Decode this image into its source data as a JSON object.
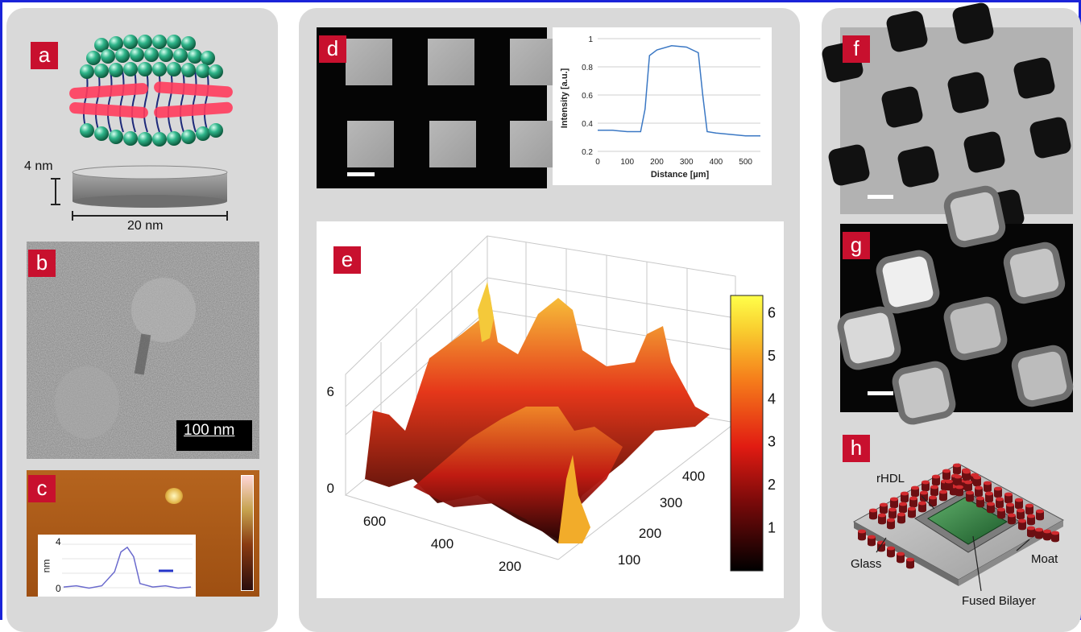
{
  "panels": {
    "a": {
      "label": "a",
      "dim_height": "4 nm",
      "dim_width": "20 nm"
    },
    "b": {
      "label": "b",
      "scale_text": "100 nm"
    },
    "c": {
      "label": "c",
      "inset_ylabel": "nm",
      "inset_ymax": "4",
      "inset_ymin": "0"
    },
    "d": {
      "label": "d"
    },
    "e": {
      "label": "e"
    },
    "f": {
      "label": "f"
    },
    "g": {
      "label": "g"
    },
    "h": {
      "label": "h",
      "callouts": {
        "rhdl": "rHDL",
        "glass": "Glass",
        "moat": "Moat",
        "fused": "Fused Bilayer"
      }
    }
  },
  "colors": {
    "label_bg": "#c8102e",
    "frame": "#1a23d8",
    "column_bg": "#d9d9d9",
    "profile_line": "#3b78c4"
  },
  "chart_data": [
    {
      "type": "line",
      "panel": "d",
      "xlabel": "Distance [µm]",
      "ylabel": "Intensity [a.u.]",
      "xlim": [
        0,
        550
      ],
      "ylim": [
        0.2,
        1.0
      ],
      "xticks": [
        0,
        100,
        200,
        300,
        400,
        500
      ],
      "yticks": [
        0.2,
        0.4,
        0.6,
        0.8,
        1
      ],
      "grid": true,
      "x": [
        0,
        50,
        100,
        145,
        160,
        175,
        200,
        250,
        300,
        340,
        355,
        370,
        400,
        450,
        500,
        550
      ],
      "y": [
        0.35,
        0.35,
        0.34,
        0.34,
        0.5,
        0.88,
        0.92,
        0.95,
        0.94,
        0.9,
        0.6,
        0.34,
        0.33,
        0.32,
        0.31,
        0.31
      ]
    },
    {
      "type": "surface",
      "panel": "e",
      "zticks": [
        "0",
        "6"
      ],
      "xticks": [
        "600",
        "400",
        "200"
      ],
      "yticks": [
        "100",
        "200",
        "300",
        "400"
      ],
      "colorbar_ticks": [
        "1",
        "2",
        "3",
        "4",
        "5",
        "6"
      ],
      "colormap": "hot"
    },
    {
      "type": "line",
      "panel": "c-inset",
      "ylabel": "nm",
      "ylim": [
        0,
        4
      ],
      "x": [
        0,
        10,
        20,
        30,
        40,
        45,
        50,
        55,
        60,
        70,
        80,
        90,
        100
      ],
      "y": [
        0.2,
        0.3,
        0.1,
        0.3,
        1.5,
        3.2,
        3.6,
        2.8,
        0.5,
        0.2,
        0.3,
        0.1,
        0.2
      ]
    }
  ]
}
